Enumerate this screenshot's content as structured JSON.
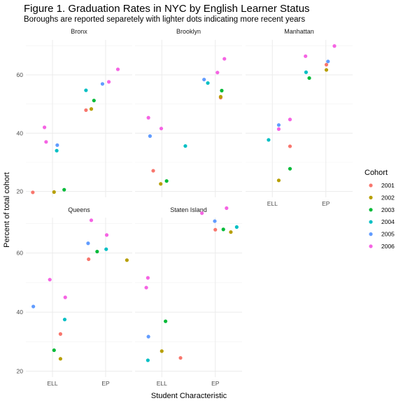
{
  "title": "Figure 1. Graduation Rates in NYC by English Learner Status",
  "subtitle": "Boroughs are reported separetely with lighter dots indicating more recent years",
  "chart_data": {
    "type": "scatter",
    "xlabel": "Student Characteristic",
    "ylabel": "Percent of total cohort",
    "categories": [
      "ELL",
      "EP"
    ],
    "ylim": [
      18,
      72
    ],
    "yticks": [
      20,
      40,
      60
    ],
    "grid": true,
    "legend": {
      "title": "Cohort",
      "placement": "right",
      "items": [
        {
          "label": "2001",
          "color": "#F8766D"
        },
        {
          "label": "2002",
          "color": "#B79F00"
        },
        {
          "label": "2003",
          "color": "#00BA38"
        },
        {
          "label": "2004",
          "color": "#00BFC4"
        },
        {
          "label": "2005",
          "color": "#619CFF"
        },
        {
          "label": "2006",
          "color": "#F564E3"
        }
      ]
    },
    "panels": [
      {
        "name": "Bronx",
        "points": [
          {
            "category": "ELL",
            "jitter": -0.37,
            "cohort": "2001",
            "value": 19.7
          },
          {
            "category": "ELL",
            "jitter": 0.03,
            "cohort": "2002",
            "value": 19.8
          },
          {
            "category": "ELL",
            "jitter": 0.22,
            "cohort": "2003",
            "value": 20.6
          },
          {
            "category": "ELL",
            "jitter": 0.08,
            "cohort": "2004",
            "value": 34.0
          },
          {
            "category": "ELL",
            "jitter": 0.09,
            "cohort": "2005",
            "value": 35.9
          },
          {
            "category": "ELL",
            "jitter": -0.15,
            "cohort": "2006",
            "value": 42.0
          },
          {
            "category": "ELL",
            "jitter": -0.12,
            "cohort": "2006",
            "value": 37.0
          },
          {
            "category": "EP",
            "jitter": -0.37,
            "cohort": "2001",
            "value": 47.9
          },
          {
            "category": "EP",
            "jitter": -0.27,
            "cohort": "2002",
            "value": 48.3
          },
          {
            "category": "EP",
            "jitter": -0.22,
            "cohort": "2003",
            "value": 51.2
          },
          {
            "category": "EP",
            "jitter": -0.37,
            "cohort": "2004",
            "value": 54.7
          },
          {
            "category": "EP",
            "jitter": -0.06,
            "cohort": "2005",
            "value": 56.9
          },
          {
            "category": "EP",
            "jitter": 0.06,
            "cohort": "2006",
            "value": 57.6
          },
          {
            "category": "EP",
            "jitter": 0.23,
            "cohort": "2006",
            "value": 61.9
          }
        ]
      },
      {
        "name": "Brooklyn",
        "points": [
          {
            "category": "ELL",
            "jitter": -0.16,
            "cohort": "2001",
            "value": 27.1
          },
          {
            "category": "ELL",
            "jitter": -0.02,
            "cohort": "2002",
            "value": 22.6
          },
          {
            "category": "ELL",
            "jitter": 0.09,
            "cohort": "2003",
            "value": 23.6
          },
          {
            "category": "ELL",
            "jitter": 0.44,
            "cohort": "2004",
            "value": 35.6
          },
          {
            "category": "ELL",
            "jitter": -0.22,
            "cohort": "2005",
            "value": 39.0
          },
          {
            "category": "ELL",
            "jitter": -0.25,
            "cohort": "2006",
            "value": 45.3
          },
          {
            "category": "ELL",
            "jitter": -0.01,
            "cohort": "2006",
            "value": 41.6
          },
          {
            "category": "EP",
            "jitter": 0.1,
            "cohort": "2001",
            "value": 52.2
          },
          {
            "category": "EP",
            "jitter": 0.1,
            "cohort": "2002",
            "value": 52.5
          },
          {
            "category": "EP",
            "jitter": 0.12,
            "cohort": "2003",
            "value": 54.6
          },
          {
            "category": "EP",
            "jitter": -0.14,
            "cohort": "2004",
            "value": 57.2
          },
          {
            "category": "EP",
            "jitter": -0.21,
            "cohort": "2005",
            "value": 58.4
          },
          {
            "category": "EP",
            "jitter": 0.04,
            "cohort": "2006",
            "value": 60.8
          },
          {
            "category": "EP",
            "jitter": 0.17,
            "cohort": "2006",
            "value": 65.5
          }
        ]
      },
      {
        "name": "Manhattan",
        "points": [
          {
            "category": "ELL",
            "jitter": 0.33,
            "cohort": "2001",
            "value": 35.5
          },
          {
            "category": "ELL",
            "jitter": 0.12,
            "cohort": "2002",
            "value": 23.8
          },
          {
            "category": "ELL",
            "jitter": 0.33,
            "cohort": "2003",
            "value": 27.8
          },
          {
            "category": "ELL",
            "jitter": -0.07,
            "cohort": "2004",
            "value": 37.7
          },
          {
            "category": "ELL",
            "jitter": 0.12,
            "cohort": "2005",
            "value": 42.8
          },
          {
            "category": "ELL",
            "jitter": 0.12,
            "cohort": "2006",
            "value": 41.4
          },
          {
            "category": "ELL",
            "jitter": 0.33,
            "cohort": "2006",
            "value": 44.7
          },
          {
            "category": "EP",
            "jitter": 0.01,
            "cohort": "2001",
            "value": 63.5
          },
          {
            "category": "EP",
            "jitter": 0.01,
            "cohort": "2002",
            "value": 61.7
          },
          {
            "category": "EP",
            "jitter": -0.31,
            "cohort": "2003",
            "value": 58.9
          },
          {
            "category": "EP",
            "jitter": -0.37,
            "cohort": "2004",
            "value": 60.9
          },
          {
            "category": "EP",
            "jitter": 0.04,
            "cohort": "2005",
            "value": 64.6
          },
          {
            "category": "EP",
            "jitter": -0.38,
            "cohort": "2006",
            "value": 66.4
          },
          {
            "category": "EP",
            "jitter": 0.16,
            "cohort": "2006",
            "value": 69.9
          }
        ]
      },
      {
        "name": "Queens",
        "points": [
          {
            "category": "ELL",
            "jitter": 0.15,
            "cohort": "2001",
            "value": 32.6
          },
          {
            "category": "ELL",
            "jitter": 0.15,
            "cohort": "2002",
            "value": 24.2
          },
          {
            "category": "ELL",
            "jitter": 0.03,
            "cohort": "2003",
            "value": 27.1
          },
          {
            "category": "ELL",
            "jitter": 0.23,
            "cohort": "2004",
            "value": 37.5
          },
          {
            "category": "ELL",
            "jitter": -0.36,
            "cohort": "2005",
            "value": 41.9
          },
          {
            "category": "ELL",
            "jitter": -0.05,
            "cohort": "2006",
            "value": 51.0
          },
          {
            "category": "ELL",
            "jitter": 0.24,
            "cohort": "2006",
            "value": 45.0
          },
          {
            "category": "EP",
            "jitter": -0.32,
            "cohort": "2001",
            "value": 57.9
          },
          {
            "category": "EP",
            "jitter": 0.4,
            "cohort": "2002",
            "value": 57.6
          },
          {
            "category": "EP",
            "jitter": -0.16,
            "cohort": "2003",
            "value": 60.5
          },
          {
            "category": "EP",
            "jitter": 0.01,
            "cohort": "2004",
            "value": 61.3
          },
          {
            "category": "EP",
            "jitter": -0.33,
            "cohort": "2005",
            "value": 63.3
          },
          {
            "category": "EP",
            "jitter": 0.02,
            "cohort": "2006",
            "value": 66.1
          },
          {
            "category": "EP",
            "jitter": -0.27,
            "cohort": "2006",
            "value": 71.1
          }
        ]
      },
      {
        "name": "Staten Island",
        "points": [
          {
            "category": "ELL",
            "jitter": 0.35,
            "cohort": "2001",
            "value": 24.5
          },
          {
            "category": "ELL",
            "jitter": 0.0,
            "cohort": "2002",
            "value": 26.8
          },
          {
            "category": "ELL",
            "jitter": 0.07,
            "cohort": "2003",
            "value": 36.9
          },
          {
            "category": "ELL",
            "jitter": -0.26,
            "cohort": "2004",
            "value": 23.7
          },
          {
            "category": "ELL",
            "jitter": -0.25,
            "cohort": "2005",
            "value": 31.7
          },
          {
            "category": "ELL",
            "jitter": -0.26,
            "cohort": "2006",
            "value": 51.6
          },
          {
            "category": "ELL",
            "jitter": -0.29,
            "cohort": "2006",
            "value": 48.3
          },
          {
            "category": "EP",
            "jitter": 0.0,
            "cohort": "2001",
            "value": 67.9
          },
          {
            "category": "EP",
            "jitter": 0.29,
            "cohort": "2002",
            "value": 67.1
          },
          {
            "category": "EP",
            "jitter": 0.15,
            "cohort": "2003",
            "value": 68.0
          },
          {
            "category": "EP",
            "jitter": 0.4,
            "cohort": "2004",
            "value": 68.8
          },
          {
            "category": "EP",
            "jitter": -0.01,
            "cohort": "2005",
            "value": 70.8
          },
          {
            "category": "EP",
            "jitter": -0.25,
            "cohort": "2006",
            "value": 73.5
          },
          {
            "category": "EP",
            "jitter": 0.21,
            "cohort": "2006",
            "value": 75.2
          }
        ]
      }
    ]
  }
}
